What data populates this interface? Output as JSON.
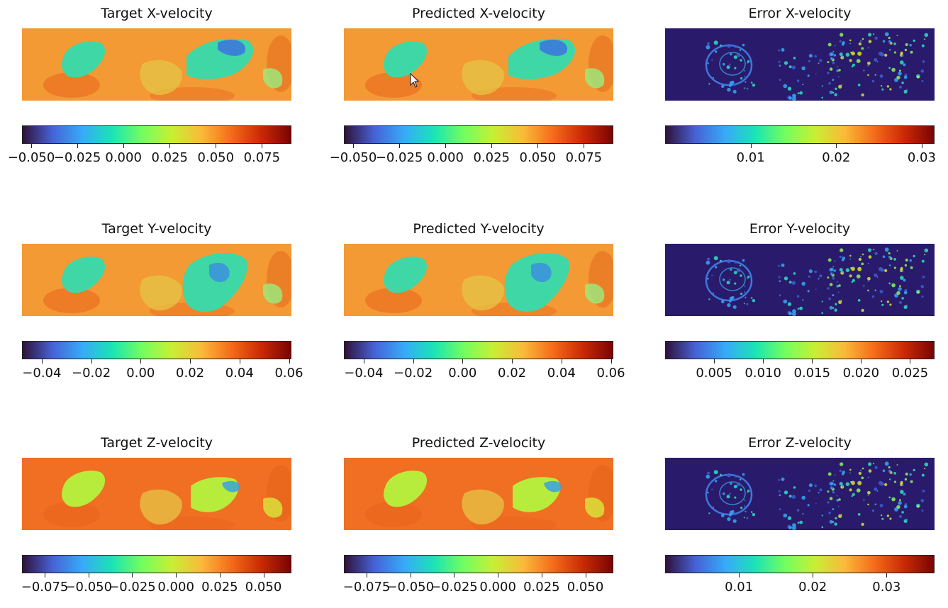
{
  "colors": {
    "colormap": [
      "#30123b",
      "#4662d7",
      "#36aaf9",
      "#1ae4b6",
      "#72fe5e",
      "#c8ef34",
      "#faba39",
      "#f66b19",
      "#ca2a04",
      "#7a0403"
    ],
    "error_background": "#2a1a6b"
  },
  "chart_data": [
    {
      "type": "heatmap",
      "title": "Target X-velocity",
      "field": "target",
      "colorbar": {
        "range": [
          -0.055,
          0.091
        ],
        "ticks": [
          -0.05,
          -0.025,
          0.0,
          0.025,
          0.05,
          0.075
        ],
        "tick_labels": [
          "−0.050",
          "−0.025",
          "0.000",
          "0.025",
          "0.050",
          "0.075"
        ]
      }
    },
    {
      "type": "heatmap",
      "title": "Predicted X-velocity",
      "field": "predicted",
      "colorbar": {
        "range": [
          -0.055,
          0.091
        ],
        "ticks": [
          -0.05,
          -0.025,
          0.0,
          0.025,
          0.05,
          0.075
        ],
        "tick_labels": [
          "−0.050",
          "−0.025",
          "0.000",
          "0.025",
          "0.050",
          "0.075"
        ]
      }
    },
    {
      "type": "heatmap",
      "title": "Error X-velocity",
      "field": "error",
      "colorbar": {
        "range": [
          0.0,
          0.0315
        ],
        "ticks": [
          0.01,
          0.02,
          0.03
        ],
        "tick_labels": [
          "0.01",
          "0.02",
          "0.03"
        ]
      }
    },
    {
      "type": "heatmap",
      "title": "Target Y-velocity",
      "field": "target",
      "colorbar": {
        "range": [
          -0.048,
          0.061
        ],
        "ticks": [
          -0.04,
          -0.02,
          0.0,
          0.02,
          0.04,
          0.06
        ],
        "tick_labels": [
          "−0.04",
          "−0.02",
          "0.00",
          "0.02",
          "0.04",
          "0.06"
        ]
      }
    },
    {
      "type": "heatmap",
      "title": "Predicted Y-velocity",
      "field": "predicted",
      "colorbar": {
        "range": [
          -0.048,
          0.061
        ],
        "ticks": [
          -0.04,
          -0.02,
          0.0,
          0.02,
          0.04,
          0.06
        ],
        "tick_labels": [
          "−0.04",
          "−0.02",
          "0.00",
          "0.02",
          "0.04",
          "0.06"
        ]
      }
    },
    {
      "type": "heatmap",
      "title": "Error Y-velocity",
      "field": "error",
      "colorbar": {
        "range": [
          0.0,
          0.0275
        ],
        "ticks": [
          0.005,
          0.01,
          0.015,
          0.02,
          0.025
        ],
        "tick_labels": [
          "0.005",
          "0.010",
          "0.015",
          "0.020",
          "0.025"
        ]
      }
    },
    {
      "type": "heatmap",
      "title": "Target Z-velocity",
      "field": "target",
      "colorbar": {
        "range": [
          -0.088,
          0.066
        ],
        "ticks": [
          -0.075,
          -0.05,
          -0.025,
          0.0,
          0.025,
          0.05
        ],
        "tick_labels": [
          "−0.075",
          "−0.050",
          "−0.025",
          "0.000",
          "0.025",
          "0.050"
        ]
      }
    },
    {
      "type": "heatmap",
      "title": "Predicted Z-velocity",
      "field": "predicted",
      "colorbar": {
        "range": [
          -0.088,
          0.066
        ],
        "ticks": [
          -0.075,
          -0.05,
          -0.025,
          0.0,
          0.025,
          0.05
        ],
        "tick_labels": [
          "−0.075",
          "−0.050",
          "−0.025",
          "0.000",
          "0.025",
          "0.050"
        ]
      }
    },
    {
      "type": "heatmap",
      "title": "Error Z-velocity",
      "field": "error",
      "colorbar": {
        "range": [
          0.0,
          0.0365
        ],
        "ticks": [
          0.01,
          0.02,
          0.03
        ],
        "tick_labels": [
          "0.01",
          "0.02",
          "0.03"
        ]
      }
    }
  ]
}
